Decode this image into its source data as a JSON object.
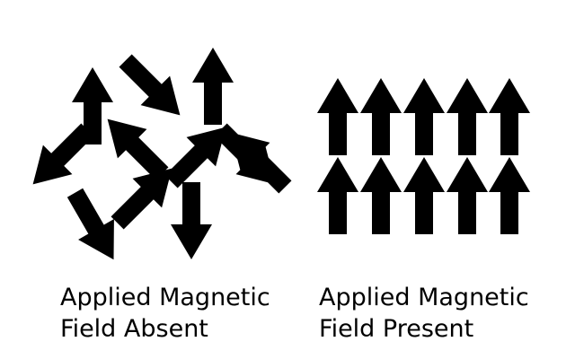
{
  "panels": {
    "absent": {
      "caption_line1": "Applied Magnetic",
      "caption_line2": "Field Absent",
      "arrow_headings_deg": [
        0,
        135,
        0,
        225,
        135,
        315,
        45,
        150,
        45,
        180,
        315
      ]
    },
    "present": {
      "caption_line1": "Applied Magnetic",
      "caption_line2": "Field Present",
      "rows": 2,
      "columns": 5,
      "arrow_heading_deg": 0
    }
  },
  "colors": {
    "arrow": "#000000",
    "text": "#000000",
    "background": "#ffffff"
  },
  "icons": {
    "arrow": "arrow-icon"
  }
}
